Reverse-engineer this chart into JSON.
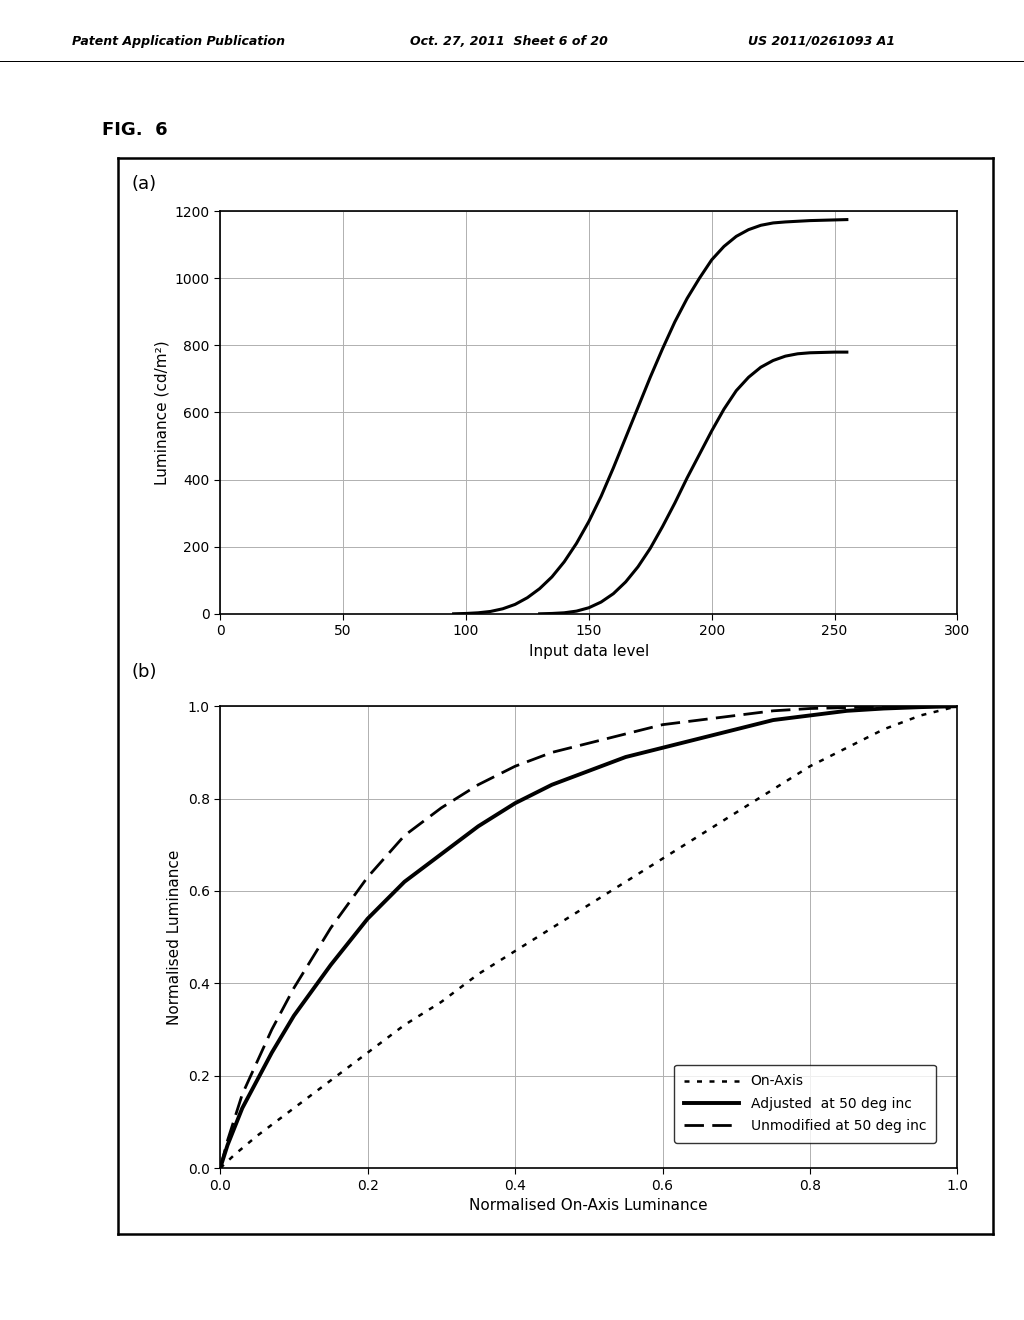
{
  "fig_label": "FIG.  6",
  "panel_a": {
    "label": "(a)",
    "xlabel": "Input data level",
    "ylabel": "Luminance (cd/m²)",
    "xlim": [
      0,
      300
    ],
    "ylim": [
      0,
      1200
    ],
    "xticks": [
      0,
      50,
      100,
      150,
      200,
      250,
      300
    ],
    "yticks": [
      0,
      200,
      400,
      600,
      800,
      1000,
      1200
    ],
    "curve1_x": [
      95,
      100,
      105,
      110,
      115,
      120,
      125,
      130,
      135,
      140,
      145,
      150,
      155,
      160,
      165,
      170,
      175,
      180,
      185,
      190,
      195,
      200,
      205,
      210,
      215,
      220,
      225,
      230,
      235,
      240,
      245,
      250,
      255
    ],
    "curve1_y": [
      0,
      1,
      3,
      7,
      15,
      28,
      48,
      75,
      110,
      155,
      210,
      275,
      350,
      435,
      525,
      615,
      705,
      790,
      870,
      940,
      1000,
      1055,
      1095,
      1125,
      1145,
      1158,
      1165,
      1168,
      1170,
      1172,
      1173,
      1174,
      1175
    ],
    "curve2_x": [
      130,
      135,
      140,
      145,
      150,
      155,
      160,
      165,
      170,
      175,
      180,
      185,
      190,
      195,
      200,
      205,
      210,
      215,
      220,
      225,
      230,
      235,
      240,
      245,
      250,
      255
    ],
    "curve2_y": [
      0,
      1,
      3,
      8,
      18,
      35,
      60,
      95,
      140,
      195,
      260,
      330,
      405,
      475,
      545,
      610,
      665,
      705,
      735,
      755,
      768,
      775,
      778,
      779,
      780,
      780
    ]
  },
  "panel_b": {
    "label": "(b)",
    "xlabel": "Normalised On-Axis Luminance",
    "ylabel": "Normalised Luminance",
    "xlim": [
      0,
      1
    ],
    "ylim": [
      0,
      1
    ],
    "xticks": [
      0,
      0.2,
      0.4,
      0.6,
      0.8,
      1
    ],
    "yticks": [
      0,
      0.2,
      0.4,
      0.6,
      0.8,
      1
    ],
    "on_axis_x": [
      0,
      0.02,
      0.05,
      0.1,
      0.15,
      0.2,
      0.25,
      0.3,
      0.35,
      0.4,
      0.45,
      0.5,
      0.55,
      0.6,
      0.65,
      0.7,
      0.75,
      0.8,
      0.85,
      0.9,
      0.95,
      1.0
    ],
    "on_axis_y": [
      0,
      0.03,
      0.07,
      0.13,
      0.19,
      0.25,
      0.31,
      0.36,
      0.42,
      0.47,
      0.52,
      0.57,
      0.62,
      0.67,
      0.72,
      0.77,
      0.82,
      0.87,
      0.91,
      0.95,
      0.98,
      1.0
    ],
    "adjusted_x": [
      0,
      0.01,
      0.02,
      0.03,
      0.05,
      0.07,
      0.1,
      0.15,
      0.2,
      0.25,
      0.3,
      0.35,
      0.4,
      0.45,
      0.5,
      0.55,
      0.6,
      0.65,
      0.7,
      0.75,
      0.8,
      0.85,
      0.9,
      0.95,
      1.0
    ],
    "adjusted_y": [
      0,
      0.05,
      0.09,
      0.13,
      0.19,
      0.25,
      0.33,
      0.44,
      0.54,
      0.62,
      0.68,
      0.74,
      0.79,
      0.83,
      0.86,
      0.89,
      0.91,
      0.93,
      0.95,
      0.97,
      0.98,
      0.99,
      0.995,
      0.998,
      1.0
    ],
    "unmodified_x": [
      0,
      0.01,
      0.02,
      0.03,
      0.05,
      0.07,
      0.1,
      0.15,
      0.2,
      0.25,
      0.3,
      0.35,
      0.4,
      0.45,
      0.5,
      0.55,
      0.6,
      0.65,
      0.7,
      0.75,
      0.8,
      0.85,
      0.9,
      0.95,
      1.0
    ],
    "unmodified_y": [
      0,
      0.06,
      0.11,
      0.16,
      0.23,
      0.3,
      0.39,
      0.52,
      0.63,
      0.72,
      0.78,
      0.83,
      0.87,
      0.9,
      0.92,
      0.94,
      0.96,
      0.97,
      0.98,
      0.99,
      0.995,
      0.997,
      0.999,
      1.0,
      1.0
    ],
    "legend_entries": [
      "On-Axis",
      "Adjusted  at 50 deg inc",
      "Unmodified at 50 deg inc"
    ]
  },
  "background_color": "#ffffff",
  "line_color": "#000000",
  "grid_color": "#b0b0b0"
}
